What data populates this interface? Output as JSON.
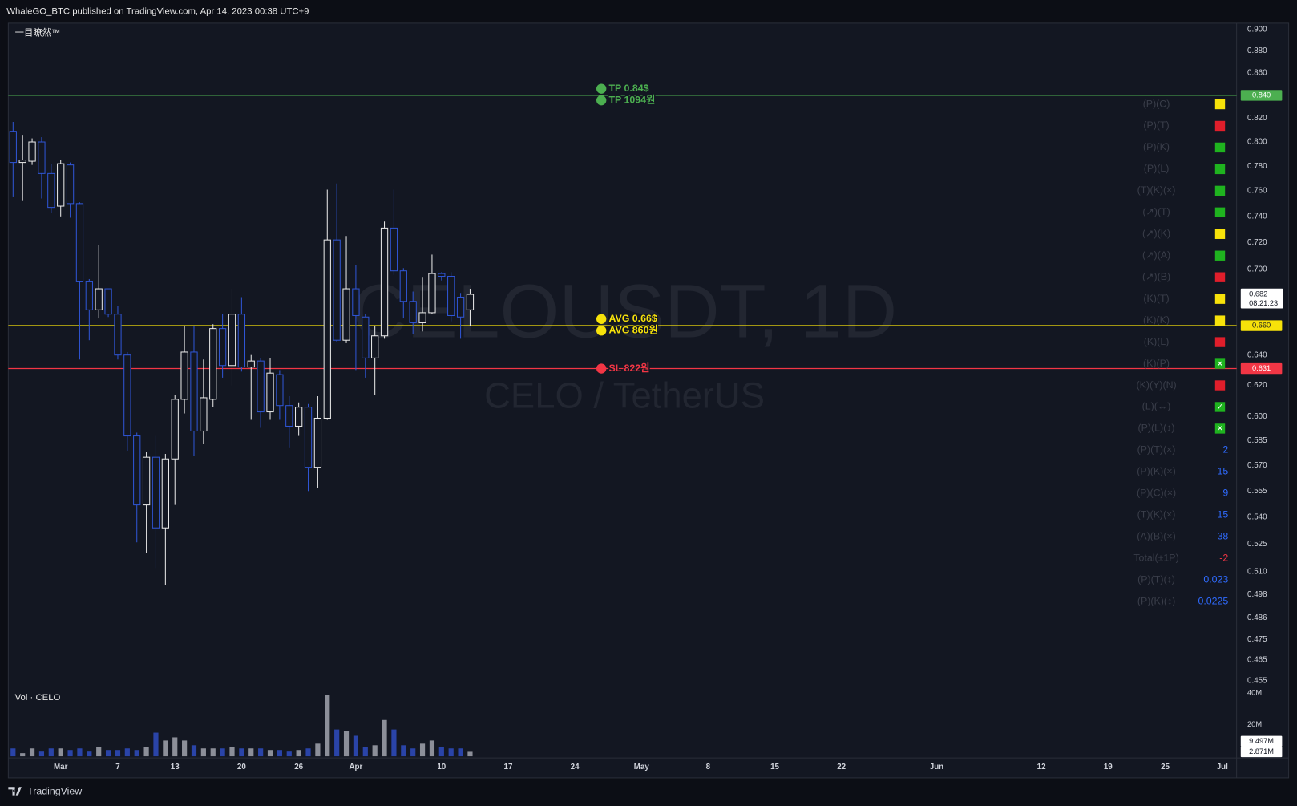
{
  "header": "WhaleGO_BTC published on TradingView.com, Apr 14, 2023 00:38 UTC+9",
  "footer": "TradingView",
  "chart_data": {
    "type": "candlestick",
    "symbol": "CELOUSDT, 1D",
    "pair": "CELO / TetherUS",
    "indicator": "一目瞭然™",
    "open": [
      0.809,
      0.783,
      0.784,
      0.8,
      0.774,
      0.748,
      0.781,
      0.75,
      0.691,
      0.671,
      0.686,
      0.668,
      0.64,
      0.588,
      0.547,
      0.575,
      0.534,
      0.574,
      0.611,
      0.642,
      0.591,
      0.611,
      0.658,
      0.633,
      0.668,
      0.632,
      0.636,
      0.603,
      0.627,
      0.607,
      0.594,
      0.606,
      0.569,
      0.599,
      0.722,
      0.65,
      0.686,
      0.666,
      0.638,
      0.653,
      0.731,
      0.699,
      0.677,
      0.662,
      0.669,
      0.697,
      0.695,
      0.68,
      0.671
    ],
    "high": [
      0.817,
      0.806,
      0.803,
      0.804,
      0.782,
      0.785,
      0.783,
      0.751,
      0.693,
      0.718,
      0.686,
      0.674,
      0.642,
      0.59,
      0.578,
      0.588,
      0.577,
      0.614,
      0.66,
      0.66,
      0.637,
      0.661,
      0.668,
      0.686,
      0.68,
      0.64,
      0.638,
      0.638,
      0.63,
      0.613,
      0.609,
      0.608,
      0.613,
      0.761,
      0.766,
      0.725,
      0.703,
      0.668,
      0.66,
      0.736,
      0.761,
      0.701,
      0.684,
      0.694,
      0.711,
      0.698,
      0.698,
      0.683,
      0.686
    ],
    "low": [
      0.755,
      0.752,
      0.781,
      0.754,
      0.743,
      0.74,
      0.739,
      0.637,
      0.65,
      0.665,
      0.666,
      0.637,
      0.579,
      0.526,
      0.52,
      0.512,
      0.503,
      0.547,
      0.602,
      0.576,
      0.583,
      0.606,
      0.625,
      0.62,
      0.629,
      0.598,
      0.593,
      0.598,
      0.598,
      0.581,
      0.588,
      0.555,
      0.557,
      0.598,
      0.649,
      0.648,
      0.63,
      0.625,
      0.614,
      0.651,
      0.696,
      0.665,
      0.654,
      0.656,
      0.668,
      0.692,
      0.663,
      0.651,
      0.66
    ],
    "close": [
      0.783,
      0.785,
      0.8,
      0.774,
      0.747,
      0.782,
      0.75,
      0.691,
      0.671,
      0.686,
      0.668,
      0.64,
      0.588,
      0.547,
      0.575,
      0.534,
      0.574,
      0.611,
      0.642,
      0.591,
      0.612,
      0.658,
      0.633,
      0.668,
      0.632,
      0.636,
      0.603,
      0.628,
      0.607,
      0.594,
      0.606,
      0.569,
      0.599,
      0.722,
      0.65,
      0.686,
      0.667,
      0.638,
      0.653,
      0.731,
      0.699,
      0.677,
      0.662,
      0.669,
      0.697,
      0.695,
      0.667,
      0.666,
      0.682
    ],
    "up_color": "#e8e8e8",
    "down_color": "#2f55d4",
    "xlim": [
      -0.5,
      128.5
    ],
    "xticks": [
      {
        "value": 5,
        "label": "Mar"
      },
      {
        "value": 11,
        "label": "7"
      },
      {
        "value": 17,
        "label": "13"
      },
      {
        "value": 24,
        "label": "20"
      },
      {
        "value": 30,
        "label": "26"
      },
      {
        "value": 36,
        "label": "Apr"
      },
      {
        "value": 45,
        "label": "10"
      },
      {
        "value": 52,
        "label": "17"
      },
      {
        "value": 59,
        "label": "24"
      },
      {
        "value": 66,
        "label": "May"
      },
      {
        "value": 73,
        "label": "8"
      },
      {
        "value": 80,
        "label": "15"
      },
      {
        "value": 87,
        "label": "22"
      },
      {
        "value": 97,
        "label": "Jun"
      },
      {
        "value": 108,
        "label": "12"
      },
      {
        "value": 115,
        "label": "19"
      },
      {
        "value": 121,
        "label": "25"
      },
      {
        "value": 127,
        "label": "Jul"
      }
    ],
    "ylim": [
      0.42,
      0.906
    ],
    "log_scale": true,
    "yticks": [
      {
        "value": 0.9,
        "label": "0.900"
      },
      {
        "value": 0.88,
        "label": "0.880"
      },
      {
        "value": 0.86,
        "label": "0.860"
      },
      {
        "value": 0.82,
        "label": "0.820"
      },
      {
        "value": 0.8,
        "label": "0.800"
      },
      {
        "value": 0.78,
        "label": "0.780"
      },
      {
        "value": 0.76,
        "label": "0.760"
      },
      {
        "value": 0.74,
        "label": "0.740"
      },
      {
        "value": 0.72,
        "label": "0.720"
      },
      {
        "value": 0.7,
        "label": "0.700"
      },
      {
        "value": 0.64,
        "label": "0.640"
      },
      {
        "value": 0.62,
        "label": "0.620"
      },
      {
        "value": 0.6,
        "label": "0.600"
      },
      {
        "value": 0.585,
        "label": "0.585"
      },
      {
        "value": 0.57,
        "label": "0.570"
      },
      {
        "value": 0.555,
        "label": "0.555"
      },
      {
        "value": 0.54,
        "label": "0.540"
      },
      {
        "value": 0.525,
        "label": "0.525"
      },
      {
        "value": 0.51,
        "label": "0.510"
      },
      {
        "value": 0.498,
        "label": "0.498"
      },
      {
        "value": 0.486,
        "label": "0.486"
      },
      {
        "value": 0.475,
        "label": "0.475"
      },
      {
        "value": 0.465,
        "label": "0.465"
      },
      {
        "value": 0.455,
        "label": "0.455"
      }
    ],
    "last_price": {
      "value": 0.682,
      "label": "0.682"
    },
    "countdown": "08:21:23",
    "levels": [
      {
        "value": 0.84,
        "label": "0.840",
        "color": "#4caf50",
        "texts": [
          "TP 0.84$",
          "TP 1094원"
        ]
      },
      {
        "value": 0.66,
        "label": "0.660",
        "color": "#f7e20a",
        "texts": [
          "AVG 0.66$",
          "AVG 860원"
        ]
      },
      {
        "value": 0.631,
        "label": "0.631",
        "color": "#f23645",
        "texts": [
          "SL 822원"
        ]
      }
    ],
    "volume": {
      "title": "Vol · CELO",
      "values": [
        5,
        2,
        5,
        3,
        5,
        5,
        4,
        5,
        3,
        6,
        4,
        4,
        5,
        4,
        6,
        15,
        10,
        12,
        10,
        7,
        5,
        5,
        5,
        6,
        5,
        5,
        5,
        4,
        4,
        3,
        4,
        5,
        8,
        39,
        17,
        16,
        13,
        6,
        7,
        23,
        17,
        7,
        5,
        8,
        10,
        6,
        5,
        5,
        2.871
      ],
      "value_labels": [
        null,
        null,
        null,
        null,
        null,
        null,
        null,
        null,
        null,
        null,
        null,
        null,
        null,
        null,
        null,
        null,
        null,
        null,
        null,
        null,
        null,
        null,
        null,
        null,
        null,
        null,
        null,
        null,
        null,
        null,
        null,
        null,
        null,
        null,
        null,
        null,
        null,
        null,
        null,
        null,
        null,
        null,
        null,
        null,
        null,
        null,
        null,
        null,
        "2.871M"
      ],
      "up_color": "#8c8f99",
      "down_color": "#2a44a8",
      "ylim": [
        0,
        44
      ],
      "yticks": [
        {
          "value": 20,
          "label": "20M"
        },
        {
          "value": 40,
          "label": "40M"
        }
      ],
      "ma": {
        "value": 9.497,
        "label": "9.497M"
      }
    },
    "table": {
      "rows": [
        {
          "label": "(P)(C)",
          "color": "#f7e20a"
        },
        {
          "label": "(P)(T)",
          "color": "#e01e2b"
        },
        {
          "label": "(P)(K)",
          "color": "#1fb31f"
        },
        {
          "label": "(P)(L)",
          "color": "#1fb31f"
        },
        {
          "label": "(T)(K)(×)",
          "color": "#1fb31f"
        },
        {
          "label": "(↗)(T)",
          "color": "#1fb31f"
        },
        {
          "label": "(↗)(K)",
          "color": "#f7e20a"
        },
        {
          "label": "(↗)(A)",
          "color": "#1fb31f"
        },
        {
          "label": "(↗)(B)",
          "color": "#e01e2b"
        },
        {
          "label": "(K)(T)",
          "color": "#f7e20a"
        },
        {
          "label": "(K)(K)",
          "color": "#f7e20a"
        },
        {
          "label": "(K)(L)",
          "color": "#e01e2b"
        },
        {
          "label": "(K)(P)",
          "color": "#1fb31f",
          "mark": "✕"
        },
        {
          "label": "(K)(Y)(N)",
          "color": "#e01e2b"
        },
        {
          "label": "(L)(↔)",
          "color": "#1fb31f",
          "mark": "✓"
        },
        {
          "label": "(P)(L)(↕)",
          "color": "#1fb31f",
          "mark": "✕"
        },
        {
          "label": "(P)(T)(×)",
          "value": 2,
          "color": "#2f6bff"
        },
        {
          "label": "(P)(K)(×)",
          "value": 15,
          "color": "#2f6bff"
        },
        {
          "label": "(P)(C)(×)",
          "value": 9,
          "color": "#2f6bff"
        },
        {
          "label": "(T)(K)(×)",
          "value": 15,
          "color": "#2f6bff"
        },
        {
          "label": "(A)(B)(×)",
          "value": 38,
          "color": "#2f6bff"
        },
        {
          "label": "Total(±1P)",
          "value": -2,
          "color": "#f23645"
        },
        {
          "label": "(P)(T)(↕)",
          "value": 0.023,
          "color": "#2f6bff"
        },
        {
          "label": "(P)(K)(↕)",
          "value": 0.0225,
          "color": "#2f6bff"
        }
      ]
    }
  }
}
